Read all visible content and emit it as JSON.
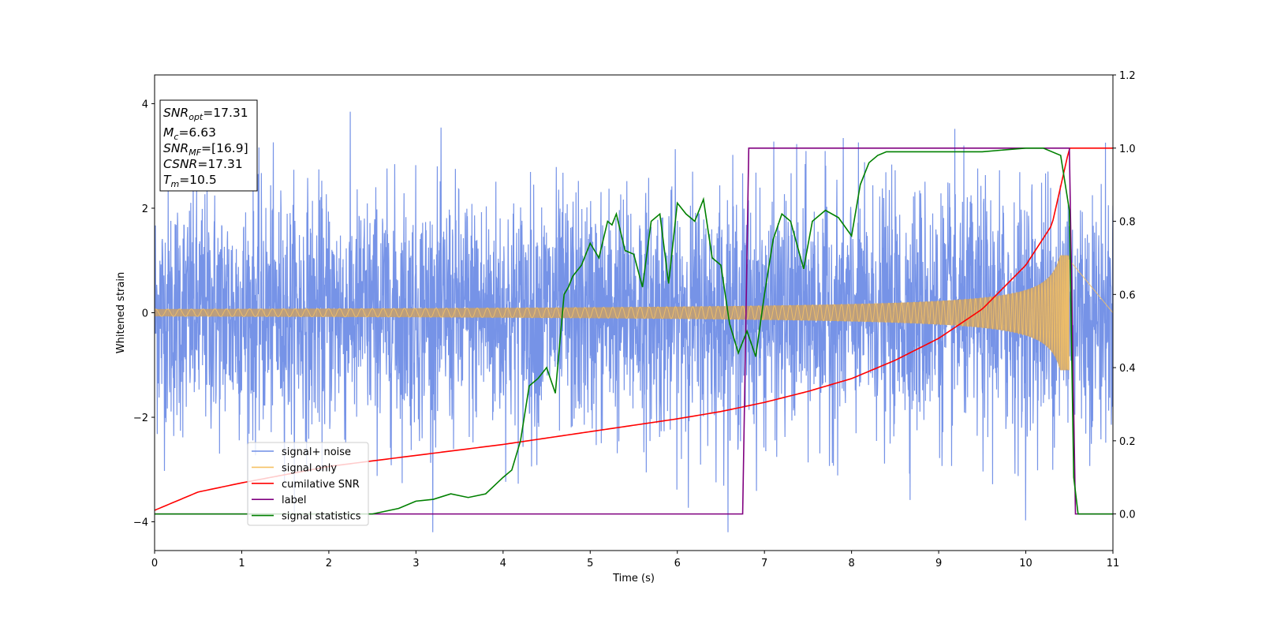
{
  "chart_data": {
    "type": "line",
    "title": "",
    "xlabel": "Time (s)",
    "ylabel": "Whitened strain",
    "y2label": "",
    "xlim": [
      0,
      11
    ],
    "ylim": [
      -4.55,
      4.55
    ],
    "y2lim": [
      -0.1,
      1.2
    ],
    "xticks": [
      "0",
      "1",
      "2",
      "3",
      "4",
      "5",
      "6",
      "7",
      "8",
      "9",
      "10",
      "11"
    ],
    "yticks": [
      "−4",
      "−2",
      "0",
      "2",
      "4"
    ],
    "y2ticks": [
      "0.0",
      "0.2",
      "0.4",
      "0.6",
      "0.8",
      "1.0",
      "1.2"
    ],
    "grid": false,
    "legend_position": "lower-left",
    "info_box": {
      "lines": [
        {
          "base": "SNR",
          "sub": "opt",
          "value": "=17.31"
        },
        {
          "base": "M",
          "sub": "c",
          "value": "=6.63"
        },
        {
          "base": "SNR",
          "sub": "MF",
          "value": "=[16.9]"
        },
        {
          "base": "CSNR",
          "sub": "",
          "value": "=17.31"
        },
        {
          "base": "T",
          "sub": "m",
          "value": "=10.5"
        }
      ]
    },
    "series": [
      {
        "name": "signal+ noise",
        "color": "#6f8de6",
        "axis": "left",
        "kind": "noise",
        "std": 1.0,
        "t_range": [
          0,
          11
        ]
      },
      {
        "name": "signal only",
        "color": "#f5c265",
        "axis": "left",
        "kind": "chirp",
        "t_start": 0,
        "t_merge": 10.5,
        "amp_start": 0.07,
        "amp_merge": 1.1
      },
      {
        "name": "cumilative SNR",
        "color": "#ff0000",
        "axis": "right",
        "x": [
          0,
          0.5,
          1,
          2,
          3,
          4,
          5,
          6,
          6.5,
          7,
          7.5,
          8,
          8.5,
          9,
          9.5,
          10,
          10.3,
          10.5,
          11
        ],
        "y": [
          0.01,
          0.06,
          0.085,
          0.13,
          0.16,
          0.19,
          0.225,
          0.26,
          0.28,
          0.305,
          0.335,
          0.37,
          0.42,
          0.48,
          0.56,
          0.68,
          0.79,
          1.0,
          1.0
        ]
      },
      {
        "name": "label",
        "color": "#800080",
        "axis": "right",
        "x": [
          0,
          6.75,
          6.82,
          10.5,
          10.57,
          11
        ],
        "y": [
          0.0,
          0.0,
          1.0,
          1.0,
          0.0,
          0.0
        ]
      },
      {
        "name": "signal statistics",
        "color": "#008000",
        "axis": "right",
        "x": [
          0,
          2.5,
          2.8,
          3.0,
          3.2,
          3.4,
          3.6,
          3.8,
          4.0,
          4.1,
          4.2,
          4.3,
          4.4,
          4.5,
          4.6,
          4.7,
          4.75,
          4.8,
          4.9,
          5.0,
          5.1,
          5.2,
          5.25,
          5.3,
          5.4,
          5.5,
          5.6,
          5.7,
          5.8,
          5.9,
          6.0,
          6.1,
          6.2,
          6.3,
          6.4,
          6.5,
          6.6,
          6.7,
          6.8,
          6.9,
          7.0,
          7.1,
          7.2,
          7.3,
          7.45,
          7.55,
          7.7,
          7.85,
          8.0,
          8.1,
          8.2,
          8.3,
          8.4,
          8.6,
          8.8,
          9.0,
          9.5,
          10.0,
          10.2,
          10.4,
          10.5,
          10.55,
          10.6,
          10.7,
          11
        ],
        "y": [
          0.0,
          0.0,
          0.015,
          0.035,
          0.04,
          0.055,
          0.045,
          0.055,
          0.1,
          0.12,
          0.2,
          0.35,
          0.37,
          0.4,
          0.33,
          0.6,
          0.62,
          0.65,
          0.68,
          0.74,
          0.7,
          0.8,
          0.79,
          0.82,
          0.72,
          0.71,
          0.62,
          0.8,
          0.82,
          0.63,
          0.85,
          0.82,
          0.8,
          0.86,
          0.7,
          0.68,
          0.52,
          0.44,
          0.5,
          0.43,
          0.6,
          0.75,
          0.82,
          0.8,
          0.67,
          0.8,
          0.83,
          0.81,
          0.76,
          0.9,
          0.96,
          0.98,
          0.99,
          0.99,
          0.99,
          0.99,
          0.99,
          1.0,
          1.0,
          0.98,
          0.83,
          0.1,
          0.0,
          0.0,
          0.0
        ]
      }
    ]
  }
}
